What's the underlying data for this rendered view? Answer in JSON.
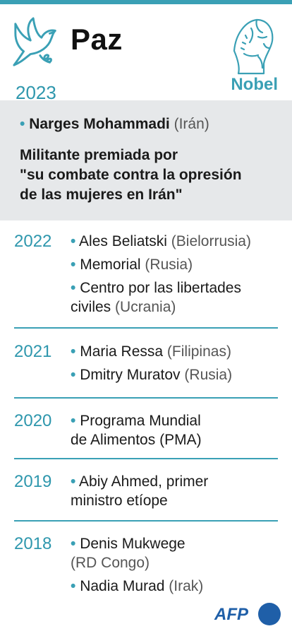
{
  "header": {
    "title": "Paz",
    "brand": "Nobel",
    "year": "2023",
    "accent_color": "#3aa0b5"
  },
  "highlight": {
    "name": "Narges Mohammadi",
    "country": "(Irán)",
    "description": "Militante premiada por\n\"su combate contra la opresión\nde las mujeres en Irán\""
  },
  "entries": [
    {
      "year": "2022",
      "items": [
        {
          "name": "Ales Beliatski",
          "country": "(Bielorrusia)"
        },
        {
          "name": "Memorial",
          "country": "(Rusia)"
        },
        {
          "name": " Centro por las libertades\nciviles",
          "country": "(Ucrania)"
        }
      ]
    },
    {
      "year": "2021",
      "items": [
        {
          "name": "Maria Ressa",
          "country": "(Filipinas)"
        },
        {
          "name": "Dmitry Muratov",
          "country": "(Rusia)"
        }
      ]
    },
    {
      "year": "2020",
      "items": [
        {
          "name": "Programa Mundial\nde Alimentos (PMA)",
          "country": ""
        }
      ]
    },
    {
      "year": "2019",
      "items": [
        {
          "name": "Abiy Ahmed, primer\nministro etíope",
          "country": ""
        }
      ]
    },
    {
      "year": "2018",
      "items": [
        {
          "name": "Denis Mukwege",
          "country": "\n(RD Congo)"
        },
        {
          "name": "Nadia Murad",
          "country": "(Irak)"
        }
      ]
    }
  ],
  "footer": {
    "agency": "AFP",
    "agency_color": "#1f5fa8"
  }
}
